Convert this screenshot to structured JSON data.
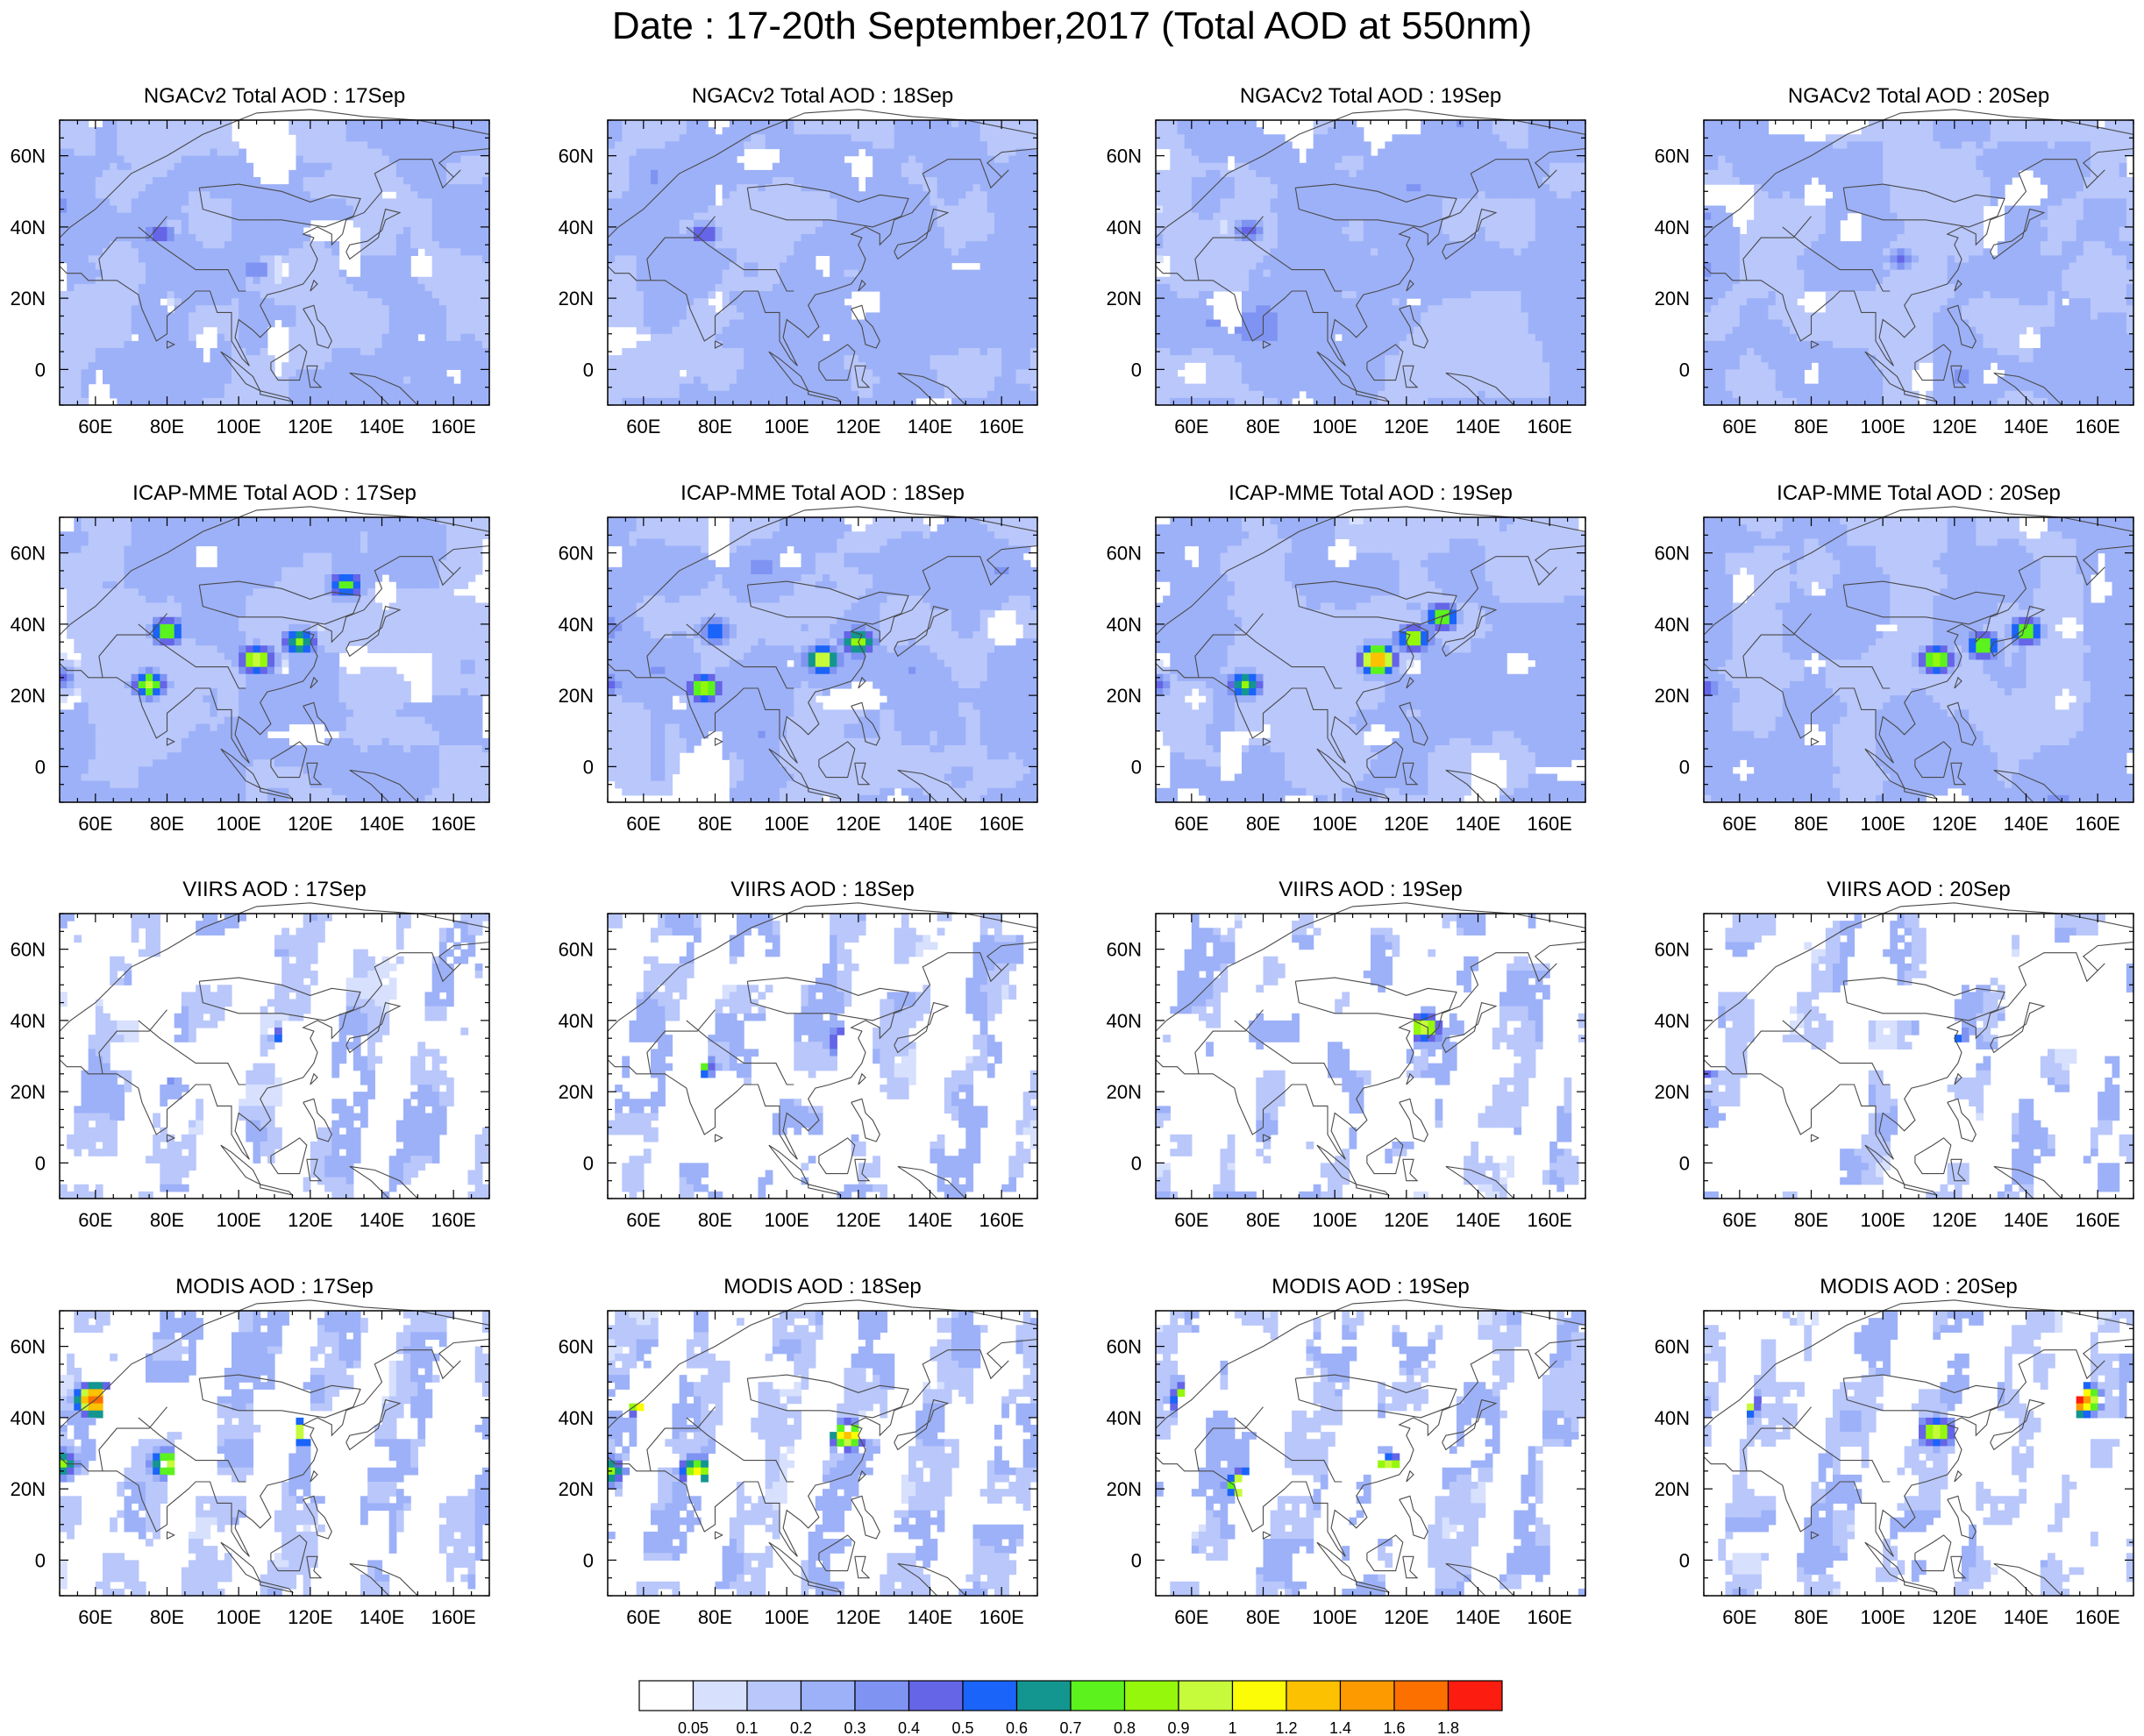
{
  "figure": {
    "title": "Date : 17-20th September,2017 (Total AOD at 550nm)"
  },
  "chart_data": {
    "type": "heatmap",
    "title": "Date : 17-20th September,2017 (Total AOD at 550nm)",
    "rows": [
      "NGACv2 Total AOD",
      "ICAP-MME Total AOD",
      "VIIRS AOD",
      "MODIS AOD"
    ],
    "columns": [
      "17Sep",
      "18Sep",
      "19Sep",
      "20Sep"
    ],
    "panels": [
      {
        "title": "NGACv2 Total AOD : 17Sep",
        "source": "NGACv2",
        "date": "17Sep",
        "background_level": 1,
        "coverage": 1.0,
        "hotspots": [
          {
            "lon": 78,
            "lat": 38,
            "aod": 0.5
          },
          {
            "lon": 105,
            "lat": 28,
            "aod": 0.4
          },
          {
            "lon": 58,
            "lat": 27,
            "aod": 0.3
          },
          {
            "lon": 85,
            "lat": 22,
            "aod": 0.3
          }
        ]
      },
      {
        "title": "NGACv2 Total AOD : 18Sep",
        "source": "NGACv2",
        "date": "18Sep",
        "background_level": 1,
        "coverage": 1.0,
        "hotspots": [
          {
            "lon": 77,
            "lat": 38,
            "aod": 0.5
          },
          {
            "lon": 50,
            "lat": 38,
            "aod": 0.3
          },
          {
            "lon": 90,
            "lat": 28,
            "aod": 0.3
          }
        ]
      },
      {
        "title": "NGACv2 Total AOD : 19Sep",
        "source": "NGACv2",
        "date": "19Sep",
        "background_level": 1,
        "coverage": 1.0,
        "hotspots": [
          {
            "lon": 76,
            "lat": 39,
            "aod": 0.5
          },
          {
            "lon": 50,
            "lat": 36,
            "aod": 0.3
          },
          {
            "lon": 95,
            "lat": 30,
            "aod": 0.3
          },
          {
            "lon": 120,
            "lat": 38,
            "aod": 0.3
          }
        ]
      },
      {
        "title": "NGACv2 Total AOD : 20Sep",
        "source": "NGACv2",
        "date": "20Sep",
        "background_level": 1,
        "coverage": 1.0,
        "hotspots": [
          {
            "lon": 105,
            "lat": 31,
            "aod": 0.4
          },
          {
            "lon": 50,
            "lat": 28,
            "aod": 0.4
          },
          {
            "lon": 80,
            "lat": 30,
            "aod": 0.3
          }
        ]
      },
      {
        "title": "ICAP-MME Total AOD : 17Sep",
        "source": "ICAP-MME",
        "date": "17Sep",
        "background_level": 1,
        "coverage": 1.0,
        "hotspots": [
          {
            "lon": 130,
            "lat": 51,
            "aod": 0.8
          },
          {
            "lon": 80,
            "lat": 38,
            "aod": 0.8
          },
          {
            "lon": 75,
            "lat": 23,
            "aod": 0.9
          },
          {
            "lon": 117,
            "lat": 35,
            "aod": 0.8
          },
          {
            "lon": 105,
            "lat": 30,
            "aod": 1.0
          },
          {
            "lon": 50,
            "lat": 25,
            "aod": 0.5
          }
        ]
      },
      {
        "title": "ICAP-MME Total AOD : 18Sep",
        "source": "ICAP-MME",
        "date": "18Sep",
        "background_level": 1,
        "coverage": 1.0,
        "hotspots": [
          {
            "lon": 77,
            "lat": 22,
            "aod": 0.9
          },
          {
            "lon": 80,
            "lat": 38,
            "aod": 0.6
          },
          {
            "lon": 120,
            "lat": 35,
            "aod": 0.9
          },
          {
            "lon": 110,
            "lat": 30,
            "aod": 1.0
          },
          {
            "lon": 50,
            "lat": 23,
            "aod": 0.5
          }
        ]
      },
      {
        "title": "ICAP-MME Total AOD : 19Sep",
        "source": "ICAP-MME",
        "date": "19Sep",
        "background_level": 1,
        "coverage": 1.0,
        "hotspots": [
          {
            "lon": 112,
            "lat": 30,
            "aod": 1.4
          },
          {
            "lon": 122,
            "lat": 36,
            "aod": 0.9
          },
          {
            "lon": 130,
            "lat": 42,
            "aod": 0.8
          },
          {
            "lon": 75,
            "lat": 23,
            "aod": 0.8
          },
          {
            "lon": 50,
            "lat": 23,
            "aod": 0.5
          }
        ]
      },
      {
        "title": "ICAP-MME Total AOD : 20Sep",
        "source": "ICAP-MME",
        "date": "20Sep",
        "background_level": 1,
        "coverage": 1.0,
        "hotspots": [
          {
            "lon": 115,
            "lat": 30,
            "aod": 0.9
          },
          {
            "lon": 128,
            "lat": 34,
            "aod": 0.8
          },
          {
            "lon": 140,
            "lat": 38,
            "aod": 0.8
          },
          {
            "lon": 50,
            "lat": 22,
            "aod": 0.5
          }
        ]
      },
      {
        "title": "VIIRS AOD : 17Sep",
        "source": "VIIRS",
        "date": "17Sep",
        "background_level": 0,
        "coverage": 0.45,
        "hotspots": [
          {
            "lon": 115,
            "lat": 35,
            "aod": 1.0
          },
          {
            "lon": 80,
            "lat": 27,
            "aod": 1.0
          },
          {
            "lon": 50,
            "lat": 27,
            "aod": 0.9
          }
        ]
      },
      {
        "title": "VIIRS AOD : 18Sep",
        "source": "VIIRS",
        "date": "18Sep",
        "background_level": 0,
        "coverage": 0.45,
        "hotspots": [
          {
            "lon": 117,
            "lat": 34,
            "aod": 1.0
          },
          {
            "lon": 75,
            "lat": 27,
            "aod": 0.9
          }
        ]
      },
      {
        "title": "VIIRS AOD : 19Sep",
        "source": "VIIRS",
        "date": "19Sep",
        "background_level": 0,
        "coverage": 0.38,
        "hotspots": [
          {
            "lon": 115,
            "lat": 30,
            "aod": 1.0
          },
          {
            "lon": 125,
            "lat": 38,
            "aod": 1.0
          },
          {
            "lon": 75,
            "lat": 30,
            "aod": 0.9
          }
        ]
      },
      {
        "title": "VIIRS AOD : 20Sep",
        "source": "VIIRS",
        "date": "20Sep",
        "background_level": 0,
        "coverage": 0.35,
        "hotspots": [
          {
            "lon": 118,
            "lat": 36,
            "aod": 0.9
          },
          {
            "lon": 50,
            "lat": 28,
            "aod": 0.9
          },
          {
            "lon": 138,
            "lat": 40,
            "aod": 0.8
          }
        ]
      },
      {
        "title": "MODIS AOD : 17Sep",
        "source": "MODIS",
        "date": "17Sep",
        "background_level": 0,
        "coverage": 0.55,
        "hotspots": [
          {
            "lon": 60,
            "lat": 45,
            "aod": 1.8
          },
          {
            "lon": 118,
            "lat": 36,
            "aod": 1.0
          },
          {
            "lon": 80,
            "lat": 27,
            "aod": 1.0
          },
          {
            "lon": 50,
            "lat": 27,
            "aod": 0.9
          }
        ]
      },
      {
        "title": "MODIS AOD : 18Sep",
        "source": "MODIS",
        "date": "18Sep",
        "background_level": 0,
        "coverage": 0.55,
        "hotspots": [
          {
            "lon": 60,
            "lat": 45,
            "aod": 1.6
          },
          {
            "lon": 117,
            "lat": 35,
            "aod": 1.2
          },
          {
            "lon": 75,
            "lat": 25,
            "aod": 1.0
          },
          {
            "lon": 50,
            "lat": 25,
            "aod": 0.9
          }
        ]
      },
      {
        "title": "MODIS AOD : 19Sep",
        "source": "MODIS",
        "date": "19Sep",
        "background_level": 0,
        "coverage": 0.48,
        "hotspots": [
          {
            "lon": 60,
            "lat": 45,
            "aod": 1.6
          },
          {
            "lon": 120,
            "lat": 36,
            "aod": 1.2
          },
          {
            "lon": 115,
            "lat": 26,
            "aod": 1.0
          },
          {
            "lon": 75,
            "lat": 21,
            "aod": 1.4
          }
        ]
      },
      {
        "title": "MODIS AOD : 20Sep",
        "source": "MODIS",
        "date": "20Sep",
        "background_level": 0,
        "coverage": 0.48,
        "hotspots": [
          {
            "lon": 155,
            "lat": 45,
            "aod": 1.8
          },
          {
            "lon": 60,
            "lat": 44,
            "aod": 1.4
          },
          {
            "lon": 115,
            "lat": 36,
            "aod": 1.0
          },
          {
            "lon": 75,
            "lat": 28,
            "aod": 0.9
          }
        ]
      }
    ],
    "xlim": [
      50,
      170
    ],
    "ylim": [
      -10,
      70
    ],
    "xticks": [
      60,
      80,
      100,
      120,
      140,
      160
    ],
    "xtick_labels": [
      "60E",
      "80E",
      "100E",
      "120E",
      "140E",
      "160E"
    ],
    "yticks": [
      0,
      20,
      40,
      60
    ],
    "ytick_labels": [
      "0",
      "20N",
      "40N",
      "60N"
    ],
    "colorbar": {
      "levels": [
        0.05,
        0.1,
        0.2,
        0.3,
        0.4,
        0.5,
        0.6,
        0.7,
        0.8,
        0.9,
        1,
        1.2,
        1.4,
        1.6,
        1.8
      ],
      "labels": [
        "0.05",
        "0.1",
        "0.2",
        "0.3",
        "0.4",
        "0.5",
        "0.6",
        "0.7",
        "0.8",
        "0.9",
        "1",
        "1.2",
        "1.4",
        "1.6",
        "1.8"
      ],
      "colors": [
        "#ffffff",
        "#d7e0fd",
        "#b9c7fb",
        "#9db1f8",
        "#7f94f2",
        "#6565e8",
        "#1a64fa",
        "#13968f",
        "#5cf21d",
        "#94f70c",
        "#c6fb3b",
        "#fcfc06",
        "#fcc100",
        "#fc9a00",
        "#fc7000",
        "#fc1c10"
      ]
    }
  }
}
